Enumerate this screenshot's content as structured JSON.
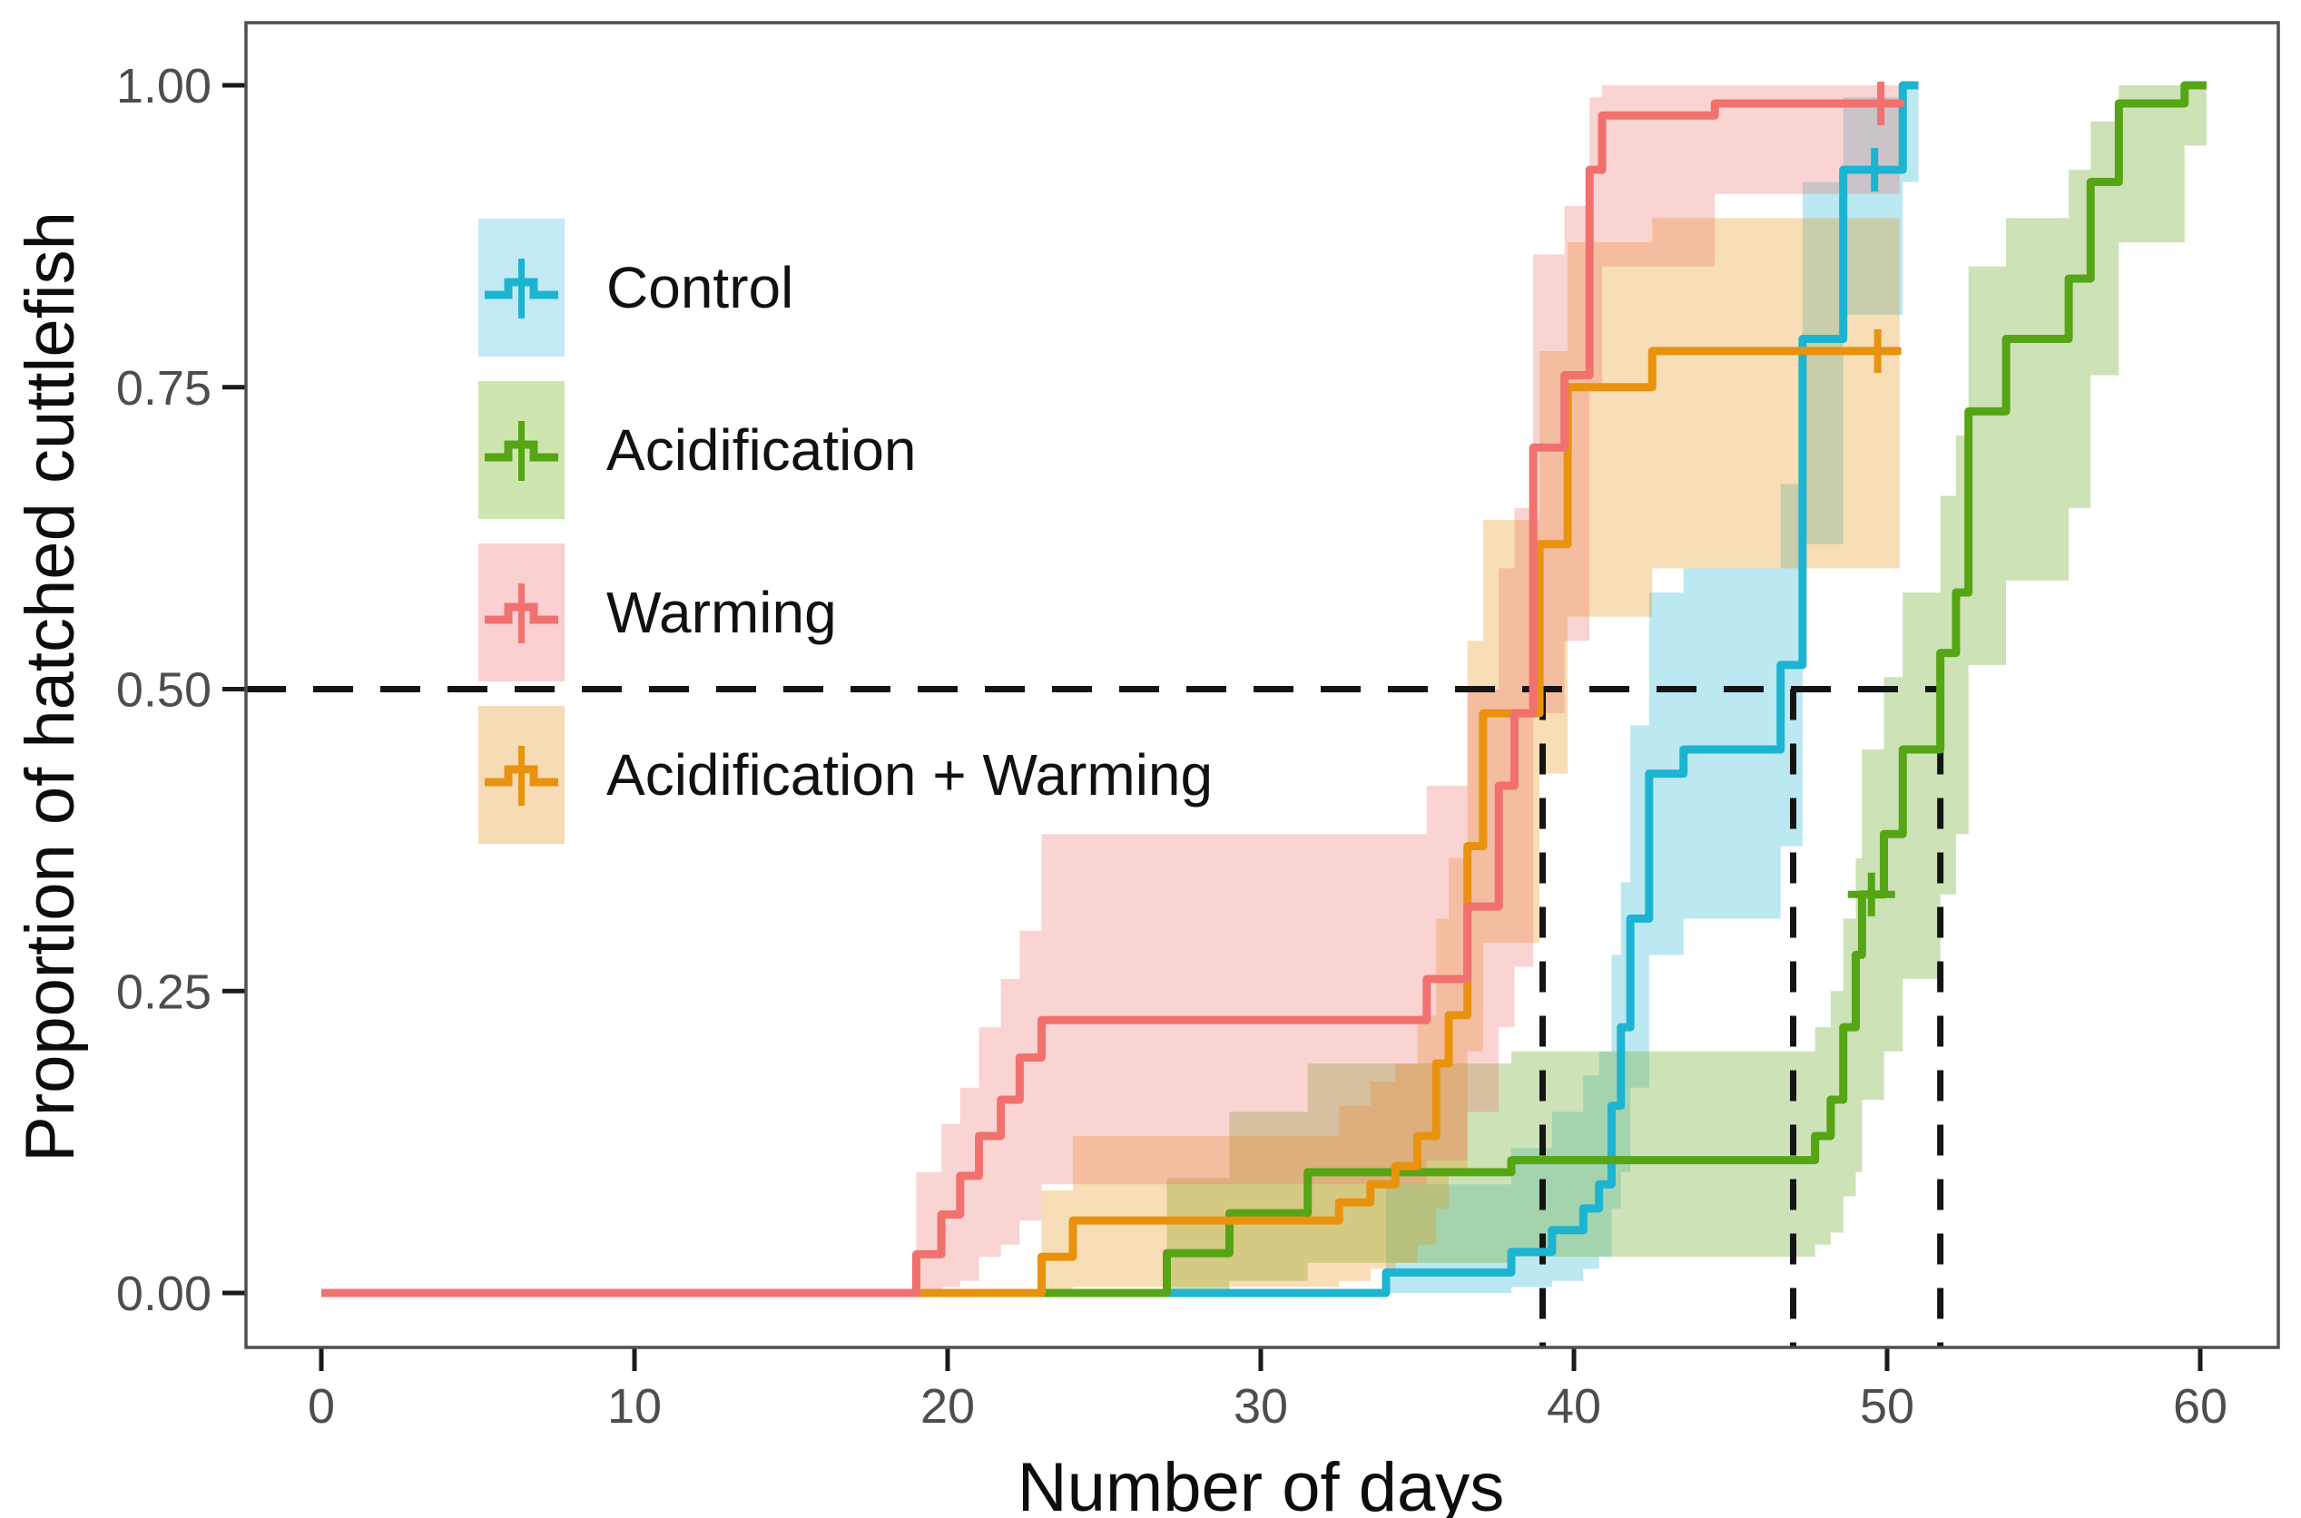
{
  "figure": {
    "background": "#ffffff"
  },
  "axes": {
    "x": {
      "title": "Number of days"
    },
    "y": {
      "title": "Proportion of hatched cuttlefish"
    }
  },
  "style": {
    "panel_border_color": "#4f4f4f",
    "tick_mark_color": "#1a1a1a",
    "tick_label_color": "#4d4d4d",
    "reference_line_color": "#141414"
  },
  "chart_data": {
    "type": "line",
    "subtype": "kaplan-meier-step-survival",
    "title": "",
    "xlabel": "Number of days",
    "ylabel": "Proportion of hatched cuttlefish",
    "xlim": [
      0,
      60
    ],
    "ylim": [
      0,
      1
    ],
    "x_ticks": [
      0,
      10,
      20,
      30,
      40,
      50,
      60
    ],
    "y_ticks": [
      {
        "label": "1.00",
        "value": 1.0
      },
      {
        "label": "0.75",
        "value": 0.75
      },
      {
        "label": "0.50",
        "value": 0.5
      },
      {
        "label": "0.25",
        "value": 0.25
      },
      {
        "label": "0.00",
        "value": 0.0
      }
    ],
    "grid": false,
    "legend_position": "inside-top-left",
    "reference_lines": {
      "horizontal_y": 0.5,
      "median_days": [
        39,
        47,
        51.7
      ]
    },
    "series": [
      {
        "name": "Control",
        "color": "#1db4d1",
        "band_fill": "rgba(29,180,209,0.30)",
        "legend_fill": "#c2e9f4",
        "steps": [
          [
            0,
            0
          ],
          [
            34,
            0.017
          ],
          [
            38,
            0.034
          ],
          [
            39.3,
            0.052
          ],
          [
            40.3,
            0.07
          ],
          [
            40.8,
            0.09
          ],
          [
            41.2,
            0.155
          ],
          [
            41.5,
            0.22
          ],
          [
            41.8,
            0.31
          ],
          [
            42.4,
            0.43
          ],
          [
            43.5,
            0.45
          ],
          [
            46.6,
            0.52
          ],
          [
            47.3,
            0.79
          ],
          [
            48.6,
            0.93
          ],
          [
            50.5,
            1.0
          ]
        ],
        "end_day": 51,
        "censor_marks": [
          [
            49.6,
            0.93
          ]
        ],
        "band": [
          [
            34,
            0,
            0.09
          ],
          [
            38,
            0.005,
            0.12
          ],
          [
            39.3,
            0.01,
            0.15
          ],
          [
            40.3,
            0.02,
            0.18
          ],
          [
            40.8,
            0.03,
            0.2
          ],
          [
            41.2,
            0.07,
            0.28
          ],
          [
            41.5,
            0.1,
            0.34
          ],
          [
            41.8,
            0.17,
            0.47
          ],
          [
            42.4,
            0.28,
            0.58
          ],
          [
            43.5,
            0.31,
            0.6
          ],
          [
            46.6,
            0.37,
            0.67
          ],
          [
            47.3,
            0.62,
            0.92
          ],
          [
            48.6,
            0.81,
            0.99
          ],
          [
            50.5,
            0.92,
            1.0
          ]
        ]
      },
      {
        "name": "Acidification",
        "color": "#55a514",
        "band_fill": "rgba(124,179,66,0.38)",
        "legend_fill": "#cfe5b0",
        "steps": [
          [
            0,
            0
          ],
          [
            27,
            0.033
          ],
          [
            29,
            0.066
          ],
          [
            31.5,
            0.1
          ],
          [
            38,
            0.11
          ],
          [
            47.7,
            0.13
          ],
          [
            48.2,
            0.16
          ],
          [
            48.6,
            0.22
          ],
          [
            49.0,
            0.28
          ],
          [
            49.2,
            0.33
          ],
          [
            49.9,
            0.38
          ],
          [
            50.5,
            0.45
          ],
          [
            51.7,
            0.53
          ],
          [
            52.2,
            0.58
          ],
          [
            52.6,
            0.73
          ],
          [
            53.8,
            0.79
          ],
          [
            55.8,
            0.84
          ],
          [
            56.5,
            0.92
          ],
          [
            57.4,
            0.985
          ],
          [
            59.5,
            1.0
          ]
        ],
        "end_day": 60.2,
        "censor_marks": [
          [
            49.5,
            0.33
          ]
        ],
        "band": [
          [
            27,
            0,
            0.095
          ],
          [
            29,
            0.01,
            0.15
          ],
          [
            31.5,
            0.025,
            0.19
          ],
          [
            38,
            0.03,
            0.2
          ],
          [
            47.7,
            0.04,
            0.22
          ],
          [
            48.2,
            0.05,
            0.25
          ],
          [
            48.6,
            0.08,
            0.31
          ],
          [
            49.0,
            0.1,
            0.36
          ],
          [
            49.2,
            0.16,
            0.45
          ],
          [
            49.9,
            0.2,
            0.51
          ],
          [
            50.5,
            0.26,
            0.58
          ],
          [
            51.7,
            0.33,
            0.66
          ],
          [
            52.2,
            0.38,
            0.71
          ],
          [
            52.6,
            0.52,
            0.85
          ],
          [
            53.8,
            0.59,
            0.89
          ],
          [
            55.8,
            0.65,
            0.93
          ],
          [
            56.5,
            0.76,
            0.97
          ],
          [
            57.4,
            0.87,
            1.0
          ],
          [
            59.5,
            0.95,
            1.0
          ]
        ]
      },
      {
        "name": "Warming",
        "color": "#f0716e",
        "band_fill": "rgba(240,113,110,0.30)",
        "legend_fill": "#fbd0d1",
        "steps": [
          [
            0,
            0
          ],
          [
            19,
            0.032
          ],
          [
            19.8,
            0.065
          ],
          [
            20.4,
            0.097
          ],
          [
            21,
            0.13
          ],
          [
            21.7,
            0.16
          ],
          [
            22.3,
            0.195
          ],
          [
            23,
            0.226
          ],
          [
            35.3,
            0.26
          ],
          [
            36.6,
            0.32
          ],
          [
            37.6,
            0.42
          ],
          [
            38.1,
            0.48
          ],
          [
            38.7,
            0.7
          ],
          [
            39.7,
            0.76
          ],
          [
            40.5,
            0.93
          ],
          [
            40.9,
            0.975
          ],
          [
            44.5,
            0.985
          ]
        ],
        "end_day": 50.4,
        "censor_marks": [
          [
            49.8,
            0.985
          ]
        ],
        "band": [
          [
            19,
            0,
            0.1
          ],
          [
            19.8,
            0.005,
            0.14
          ],
          [
            20.4,
            0.01,
            0.17
          ],
          [
            21,
            0.03,
            0.22
          ],
          [
            21.7,
            0.04,
            0.26
          ],
          [
            22.3,
            0.06,
            0.3
          ],
          [
            23,
            0.09,
            0.38
          ],
          [
            35.3,
            0.11,
            0.42
          ],
          [
            36.6,
            0.15,
            0.5
          ],
          [
            37.6,
            0.22,
            0.6
          ],
          [
            38.1,
            0.27,
            0.65
          ],
          [
            38.7,
            0.48,
            0.86
          ],
          [
            39.7,
            0.54,
            0.9
          ],
          [
            40.5,
            0.75,
            0.99
          ],
          [
            40.9,
            0.85,
            1.0
          ],
          [
            44.5,
            0.91,
            1.0
          ]
        ]
      },
      {
        "name": "Acidification + Warming",
        "color": "#e8920e",
        "band_fill": "rgba(232,146,14,0.30)",
        "legend_fill": "#f6dcb4",
        "steps": [
          [
            0,
            0
          ],
          [
            23,
            0.03
          ],
          [
            24,
            0.06
          ],
          [
            32.5,
            0.075
          ],
          [
            33.5,
            0.09
          ],
          [
            34.3,
            0.105
          ],
          [
            35,
            0.13
          ],
          [
            35.6,
            0.19
          ],
          [
            36,
            0.23
          ],
          [
            36.6,
            0.37
          ],
          [
            37.1,
            0.48
          ],
          [
            38.9,
            0.62
          ],
          [
            39.8,
            0.75
          ],
          [
            42.5,
            0.78
          ]
        ],
        "end_day": 50.4,
        "censor_marks": [
          [
            49.7,
            0.78
          ]
        ],
        "band": [
          [
            23,
            0,
            0.085
          ],
          [
            24,
            0.005,
            0.13
          ],
          [
            32.5,
            0.01,
            0.155
          ],
          [
            33.5,
            0.02,
            0.175
          ],
          [
            34.3,
            0.025,
            0.19
          ],
          [
            35,
            0.04,
            0.23
          ],
          [
            35.6,
            0.07,
            0.31
          ],
          [
            36,
            0.1,
            0.36
          ],
          [
            36.6,
            0.2,
            0.54
          ],
          [
            37.1,
            0.29,
            0.64
          ],
          [
            38.9,
            0.43,
            0.78
          ],
          [
            39.8,
            0.56,
            0.87
          ],
          [
            42.5,
            0.6,
            0.89
          ]
        ]
      }
    ]
  }
}
